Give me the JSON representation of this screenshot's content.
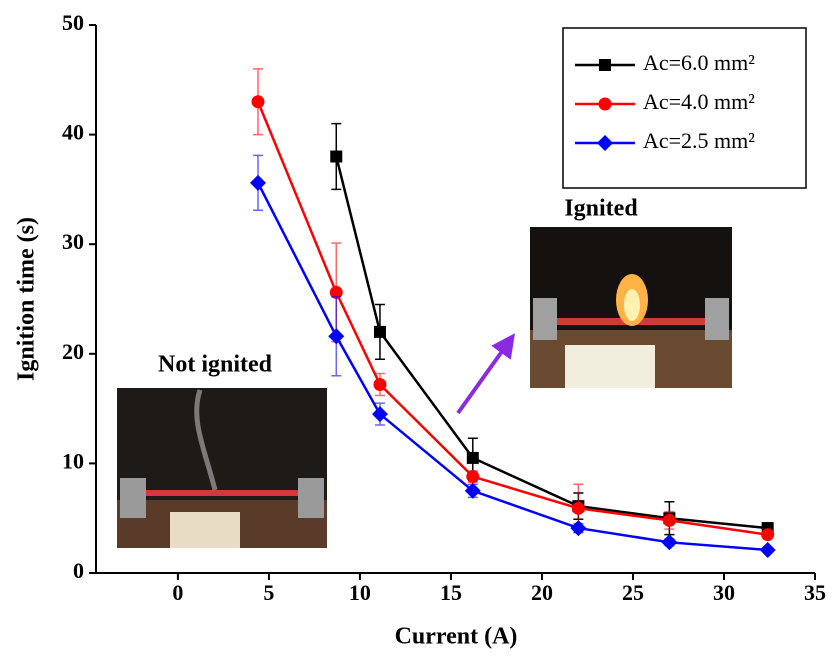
{
  "chart_data": {
    "type": "line",
    "x_label": "Current (A)",
    "y_label": "Ignition time (s)",
    "xlim": [
      -4.5,
      35
    ],
    "xticks": [
      0,
      5,
      10,
      15,
      20,
      25,
      30,
      35
    ],
    "ylim": [
      0,
      50
    ],
    "yticks": [
      0,
      10,
      20,
      30,
      40,
      50
    ],
    "grid": false,
    "legend": "upper right",
    "annotations": [
      "Not ignited",
      "Ignited"
    ],
    "series": [
      {
        "name": "Ac=6.0 mm²",
        "color": "#000000",
        "marker": "square",
        "x": [
          8.7,
          11.1,
          16.2,
          22,
          27,
          32.4
        ],
        "values": [
          38,
          22,
          10.5,
          6.1,
          5,
          4.1
        ],
        "errors": [
          3,
          2.5,
          1.8,
          1.2,
          1.5,
          0.3
        ]
      },
      {
        "name": "Ac=4.0 mm²",
        "color": "#ff0000",
        "marker": "circle",
        "x": [
          4.4,
          8.7,
          11.1,
          16.2,
          22,
          27,
          32.4
        ],
        "values": [
          43,
          25.6,
          17.2,
          8.8,
          5.9,
          4.8,
          3.5
        ],
        "errors": [
          3,
          4.5,
          1,
          0.5,
          2.2,
          0.8,
          0.3
        ]
      },
      {
        "name": "Ac=2.5 mm²",
        "color": "#0000ff",
        "marker": "diamond",
        "x": [
          4.4,
          8.7,
          11.1,
          16.2,
          22,
          27,
          32.4
        ],
        "values": [
          35.6,
          21.6,
          14.5,
          7.5,
          4.1,
          2.8,
          2.1
        ],
        "errors": [
          2.5,
          3.6,
          1,
          0.6,
          0.4,
          0.3,
          0.2
        ]
      }
    ]
  }
}
